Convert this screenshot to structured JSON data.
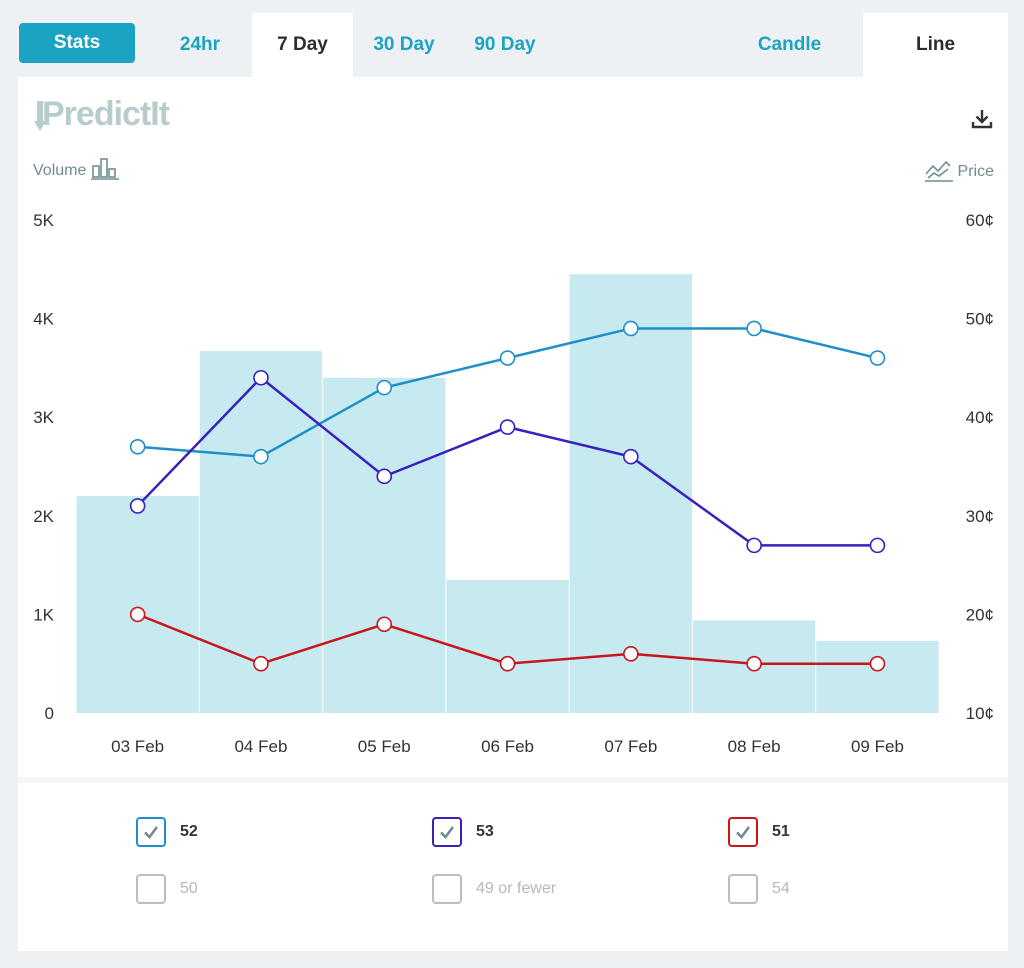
{
  "tabs": {
    "stats": "Stats",
    "range": [
      "24hr",
      "7 Day",
      "30 Day",
      "90 Day"
    ],
    "active_range": "7 Day",
    "view": [
      "Candle",
      "Line"
    ],
    "active_view": "Line"
  },
  "brand": "PredictIt",
  "icons": [
    "download-icon",
    "bar-chart-icon",
    "line-chart-icon",
    "check-icon"
  ],
  "colors": {
    "accent": "#1ba3c3",
    "bar": "#c6eaf0",
    "series_52": "#1e8fc9",
    "series_53": "#3a1fbf",
    "series_51": "#c8161d"
  },
  "labels": {
    "volume": "Volume",
    "price": "Price"
  },
  "chart_data": {
    "type": "bar+line",
    "categories": [
      "03 Feb",
      "04 Feb",
      "05 Feb",
      "06 Feb",
      "07 Feb",
      "08 Feb",
      "09 Feb"
    ],
    "volume": [
      2200,
      3670,
      3400,
      1350,
      4450,
      940,
      730
    ],
    "left_axis": {
      "label": "Volume",
      "ylim": [
        0,
        5000
      ],
      "ticks": [
        "0",
        "1K",
        "2K",
        "3K",
        "4K",
        "5K"
      ]
    },
    "right_axis": {
      "label": "Price",
      "ylim": [
        10,
        60
      ],
      "ticks": [
        "10¢",
        "20¢",
        "30¢",
        "40¢",
        "50¢",
        "60¢"
      ]
    },
    "series": [
      {
        "name": "52",
        "color": "#1e8fc9",
        "values": [
          37,
          36,
          43,
          46,
          49,
          49,
          46
        ]
      },
      {
        "name": "53",
        "color": "#3a1fbf",
        "values": [
          31,
          44,
          34,
          39,
          36,
          27,
          27
        ]
      },
      {
        "name": "51",
        "color": "#c8161d",
        "values": [
          20,
          15,
          19,
          15,
          16,
          15,
          15
        ]
      }
    ],
    "grid": false
  },
  "legend": [
    {
      "label": "52",
      "checked": true,
      "color": "#1e8fc9"
    },
    {
      "label": "53",
      "checked": true,
      "color": "#3a1fbf"
    },
    {
      "label": "51",
      "checked": true,
      "color": "#c8161d"
    },
    {
      "label": "50",
      "checked": false,
      "color": "#bdbdbd"
    },
    {
      "label": "49 or fewer",
      "checked": false,
      "color": "#bdbdbd"
    },
    {
      "label": "54",
      "checked": false,
      "color": "#bdbdbd"
    }
  ]
}
